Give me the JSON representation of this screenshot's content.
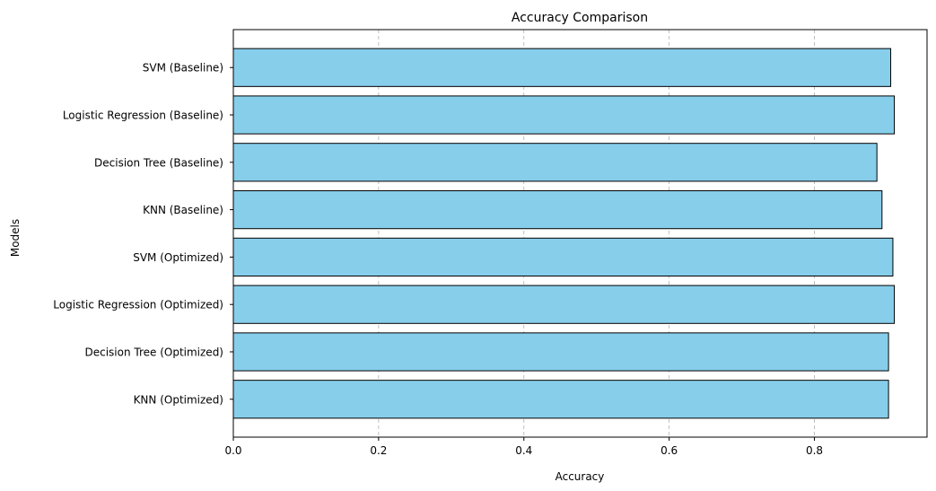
{
  "chart_data": {
    "type": "bar",
    "orientation": "horizontal",
    "title": "Accuracy Comparison",
    "xlabel": "Accuracy",
    "ylabel": "Models",
    "categories": [
      "SVM (Baseline)",
      "Logistic Regression (Baseline)",
      "Decision Tree (Baseline)",
      "KNN (Baseline)",
      "SVM (Optimized)",
      "Logistic Regression (Optimized)",
      "Decision Tree (Optimized)",
      "KNN (Optimized)"
    ],
    "values": [
      0.905,
      0.91,
      0.886,
      0.893,
      0.908,
      0.91,
      0.902,
      0.902
    ],
    "xlim": [
      0,
      0.955
    ],
    "xticks": [
      0.0,
      0.2,
      0.4,
      0.6,
      0.8
    ],
    "xtick_labels": [
      "0.0",
      "0.2",
      "0.4",
      "0.6",
      "0.8"
    ],
    "grid": "x-axis dashed",
    "legend": "none",
    "colors": {
      "bar_fill": "#87CEEB",
      "bar_edge": "#000000",
      "grid": "#b0b0b0"
    }
  }
}
